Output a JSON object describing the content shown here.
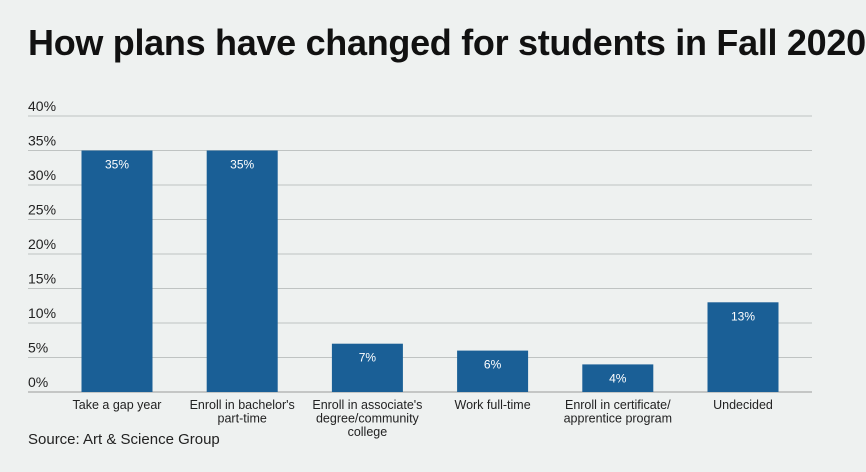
{
  "chart_data": {
    "type": "bar",
    "title": "How plans have changed for students in Fall 2020",
    "categories": [
      "Take a gap year",
      "Enroll in bachelor's part-time",
      "Enroll in associate's degree/community college",
      "Work full-time",
      "Enroll in certificate/ apprentice program",
      "Undecided"
    ],
    "category_lines": [
      [
        "Take a gap year"
      ],
      [
        "Enroll in bachelor's",
        "part-time"
      ],
      [
        "Enroll in associate's",
        "degree/community",
        "college"
      ],
      [
        "Work full-time"
      ],
      [
        "Enroll in certificate/",
        "apprentice program"
      ],
      [
        "Undecided"
      ]
    ],
    "values": [
      35,
      35,
      7,
      6,
      4,
      13
    ],
    "data_labels": [
      "35%",
      "35%",
      "7%",
      "6%",
      "4%",
      "13%"
    ],
    "y_ticks": [
      0,
      5,
      10,
      15,
      20,
      25,
      30,
      35,
      40
    ],
    "y_tick_labels": [
      "0%",
      "5%",
      "10%",
      "15%",
      "20%",
      "25%",
      "30%",
      "35%",
      "40%"
    ],
    "ylim": [
      0,
      40
    ],
    "xlabel": "",
    "ylabel": "",
    "grid": true,
    "bar_color": "#1a5f96"
  },
  "source": "Source: Art & Science Group"
}
